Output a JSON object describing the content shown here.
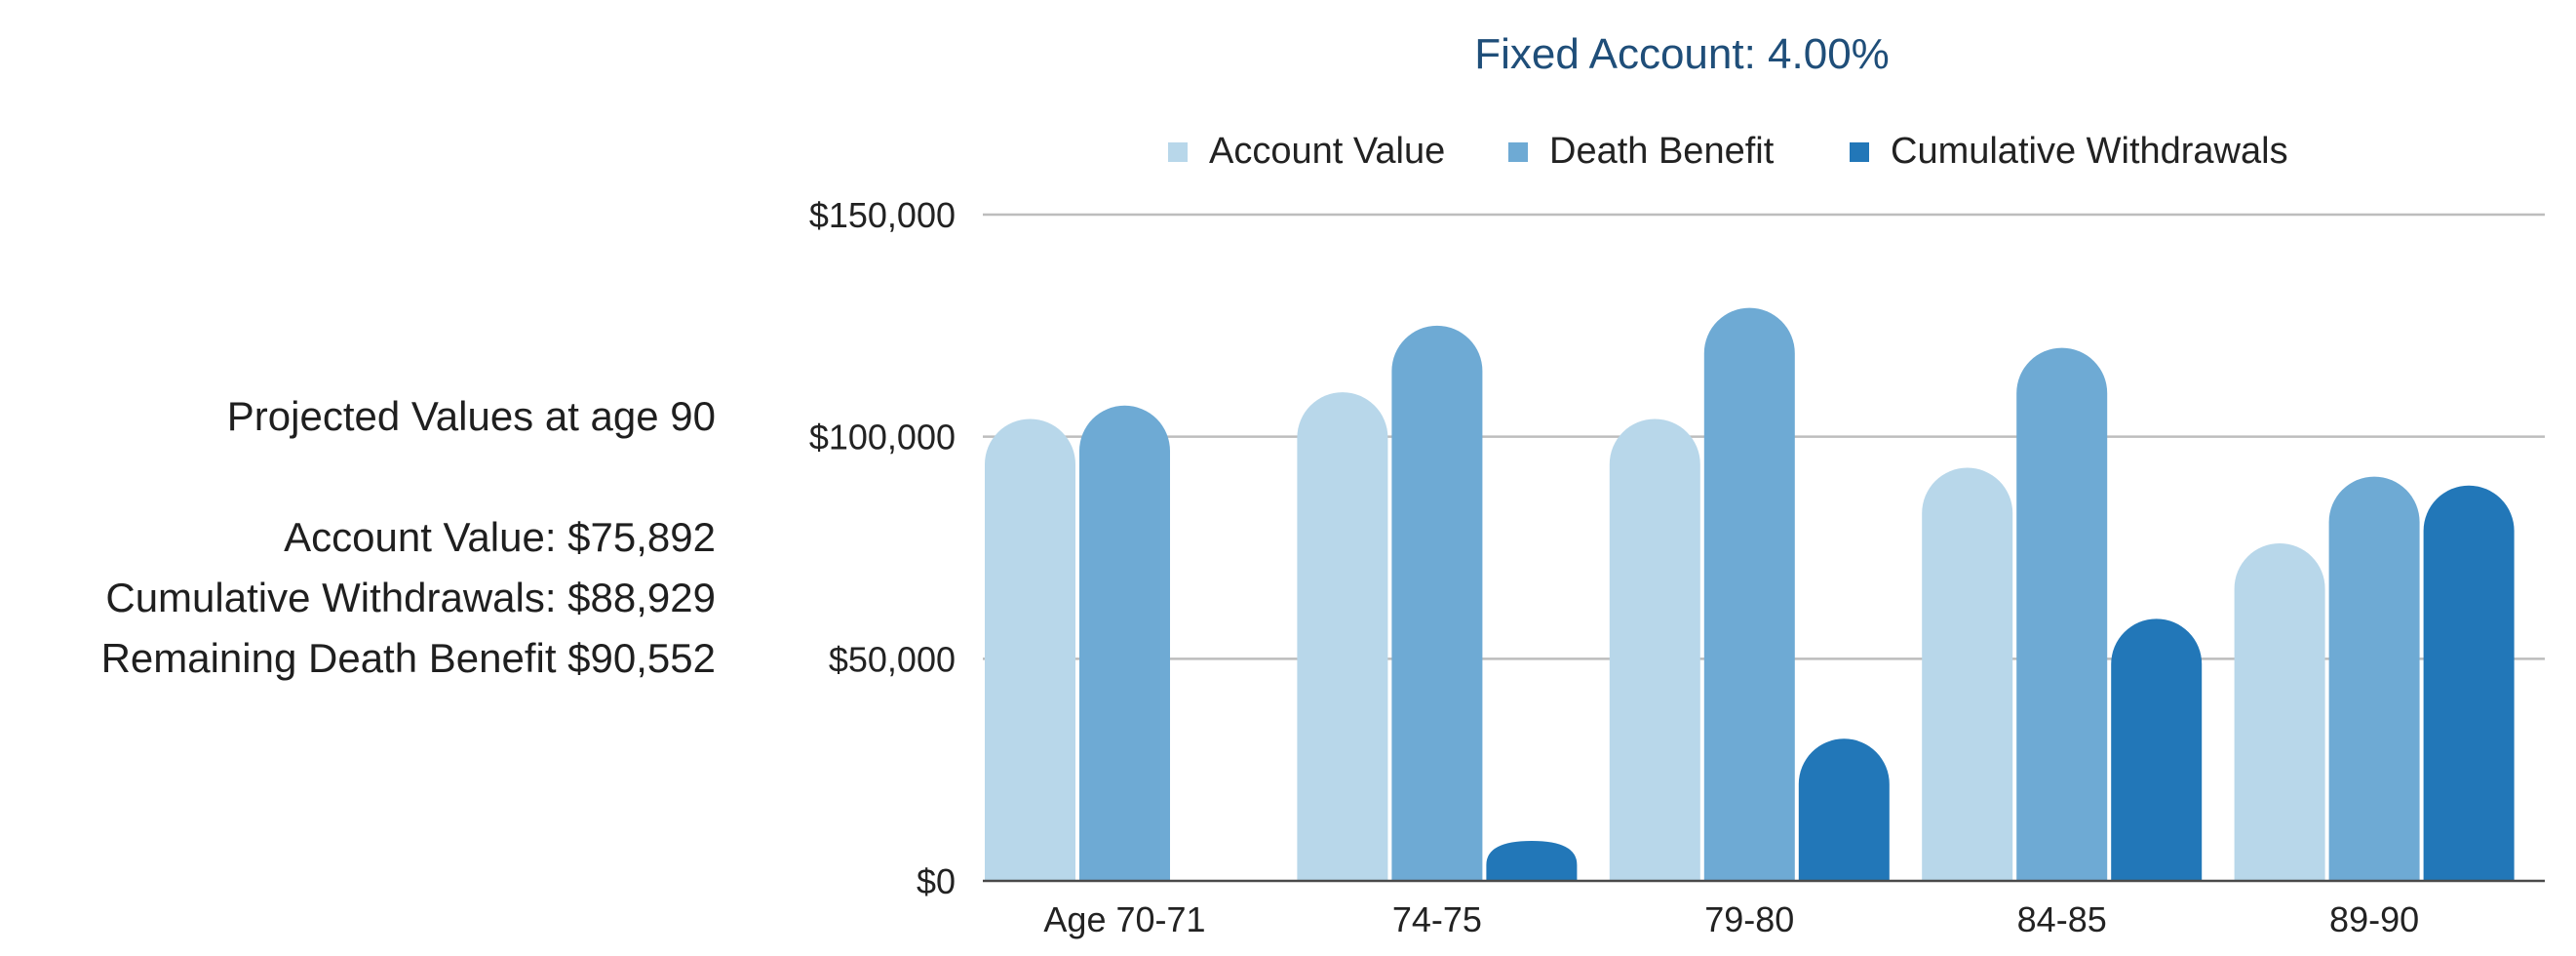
{
  "summary": {
    "heading": "Projected Values at age 90",
    "account_value": "Account Value: $75,892",
    "cumulative_withdrawals": "Cumulative Withdrawals: $88,929",
    "remaining_death_benefit": "Remaining Death Benefit $90,552"
  },
  "chart_data": {
    "type": "bar",
    "title": "Fixed Account: 4.00%",
    "xlabel": "",
    "ylabel": "",
    "categories": [
      "Age 70-71",
      "74-75",
      "79-80",
      "84-85",
      "89-90"
    ],
    "series": [
      {
        "name": "Account Value",
        "color": "#b8d7ea",
        "values": [
          104000,
          110000,
          104000,
          93000,
          76000
        ]
      },
      {
        "name": "Death Benefit",
        "color": "#6eaad4",
        "values": [
          107000,
          125000,
          129000,
          120000,
          91000
        ]
      },
      {
        "name": "Cumulative Withdrawals",
        "color": "#2277b8",
        "values": [
          0,
          9000,
          32000,
          59000,
          89000
        ]
      }
    ],
    "ylim": [
      0,
      150000
    ],
    "yticks": [
      0,
      50000,
      100000,
      150000
    ],
    "ytick_labels": [
      "$0",
      "$50,000",
      "$100,000",
      "$150,000"
    ],
    "grid": true,
    "legend_position": "top"
  }
}
